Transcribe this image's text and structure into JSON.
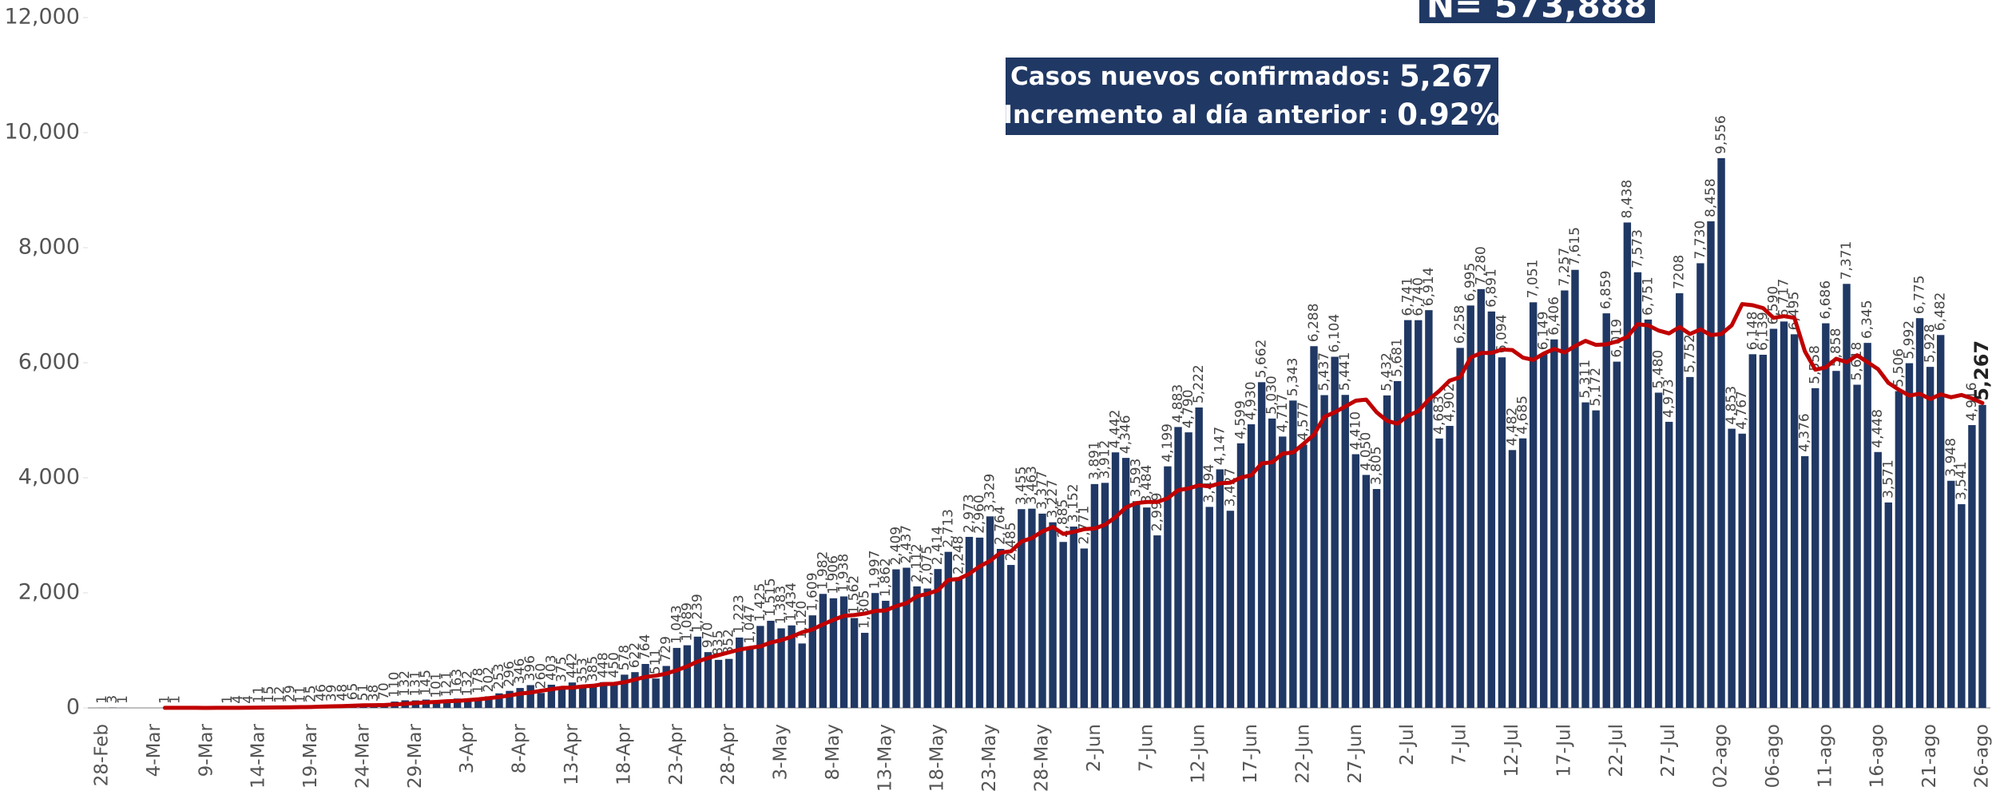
{
  "chart_data": {
    "type": "bar",
    "annotations": {
      "total": "N= 573,888",
      "new_cases_label": "Casos nuevos confirmados:",
      "new_cases_value": "5,267",
      "increase_label": "Incremento al día anterior :",
      "increase_value": "0.92%"
    },
    "categories": [
      "28-Feb",
      null,
      null,
      null,
      null,
      "4-Mar",
      null,
      null,
      null,
      null,
      "9-Mar",
      null,
      null,
      null,
      null,
      "14-Mar",
      null,
      null,
      null,
      null,
      "19-Mar",
      null,
      null,
      null,
      null,
      "24-Mar",
      null,
      null,
      null,
      null,
      "29-Mar",
      null,
      null,
      null,
      null,
      "3-Apr",
      null,
      null,
      null,
      null,
      "8-Apr",
      null,
      null,
      null,
      null,
      "13-Apr",
      null,
      null,
      null,
      null,
      "18-Apr",
      null,
      null,
      null,
      null,
      "23-Apr",
      null,
      null,
      null,
      null,
      "28-Apr",
      null,
      null,
      null,
      null,
      "3-May",
      null,
      null,
      null,
      null,
      "8-May",
      null,
      null,
      null,
      null,
      "13-May",
      null,
      null,
      null,
      null,
      "18-May",
      null,
      null,
      null,
      null,
      "23-May",
      null,
      null,
      null,
      null,
      "28-May",
      null,
      null,
      null,
      null,
      "2-Jun",
      null,
      null,
      null,
      null,
      "7-Jun",
      null,
      null,
      null,
      null,
      "12-Jun",
      null,
      null,
      null,
      null,
      "17-Jun",
      null,
      null,
      null,
      null,
      "22-Jun",
      null,
      null,
      null,
      null,
      "27-Jun",
      null,
      null,
      null,
      null,
      "2-Jul",
      null,
      null,
      null,
      null,
      "7-Jul",
      null,
      null,
      null,
      null,
      "12-Jul",
      null,
      null,
      null,
      null,
      "17-Jul",
      null,
      null,
      null,
      null,
      "22-Jul",
      null,
      null,
      null,
      null,
      "27-Jul",
      null,
      null,
      null,
      null,
      "02-ago",
      null,
      null,
      null,
      null,
      "06-ago",
      null,
      null,
      null,
      null,
      "11-ago",
      null,
      null,
      null,
      null,
      "16-ago",
      null,
      null,
      null,
      null,
      "21-ago",
      null,
      null,
      null,
      null,
      "26-ago"
    ],
    "series": [
      {
        "type": "bar",
        "color": "#203864",
        "values": [
          1,
          3,
          1,
          0,
          0,
          0,
          1,
          1,
          0,
          0,
          0,
          0,
          1,
          4,
          4,
          11,
          15,
          12,
          29,
          11,
          25,
          46,
          39,
          48,
          65,
          51,
          38,
          70,
          110,
          132,
          131,
          145,
          101,
          121,
          163,
          132,
          178,
          202,
          253,
          296,
          346,
          396,
          260,
          403,
          375,
          442,
          353,
          385,
          448,
          450,
          578,
          622,
          764,
          511,
          729,
          1043,
          1089,
          1239,
          970,
          835,
          852,
          1223,
          1047,
          1425,
          1515,
          1383,
          1434,
          1120,
          1609,
          1982,
          1906,
          1938,
          1562,
          1305,
          1997,
          1862,
          2409,
          2437,
          2112,
          2075,
          2414,
          2713,
          2248,
          2973,
          2960,
          3329,
          2764,
          2485,
          3455,
          3463,
          3377,
          3227,
          2885,
          3152,
          2771,
          3891,
          3912,
          4442,
          4346,
          3593,
          3484,
          2999,
          4199,
          4883,
          4790,
          5222,
          3494,
          4147,
          3427,
          4599,
          4930,
          5662,
          5030,
          4717,
          5343,
          4577,
          6288,
          5437,
          6104,
          5441,
          4410,
          4050,
          3805,
          5432,
          5681,
          6741,
          6740,
          6914,
          4683,
          4902,
          6258,
          6995,
          7280,
          6891,
          6094,
          4482,
          4685,
          7051,
          6149,
          6406,
          7257,
          7615,
          5311,
          5172,
          6859,
          6019,
          8438,
          7573,
          6751,
          5480,
          4973,
          7208,
          5752,
          7730,
          8458,
          9556,
          4853,
          4767,
          6148,
          6139,
          6590,
          6717,
          6495,
          4376,
          5558,
          6686,
          5858,
          7371,
          5618,
          6345,
          4448,
          3571,
          5506,
          5992,
          6775,
          5928,
          6482,
          3948,
          3541,
          4916,
          5267
        ],
        "value_labels": [
          "1",
          "3",
          "1",
          null,
          null,
          null,
          "1",
          "1",
          null,
          null,
          null,
          null,
          "1",
          "4",
          "4",
          "11",
          "15",
          "12",
          "29",
          "11",
          "25",
          "46",
          "39",
          "48",
          "65",
          "51",
          "38",
          "70",
          "110",
          "132",
          "131",
          "145",
          "101",
          "121",
          "163",
          "132",
          "178",
          "202",
          "253",
          "296",
          "346",
          "396",
          "260",
          "403",
          "375",
          "442",
          "353",
          "385",
          "448",
          "450",
          "578",
          "622",
          "764",
          "511",
          "729",
          "1,043",
          "1,089",
          "1,239",
          "970",
          "835",
          "852",
          "1,223",
          "1,047",
          "1,425",
          "1,515",
          "1,383",
          "1,434",
          "1,120",
          "1,609",
          "1,982",
          "1,906",
          "1,938",
          "1,562",
          "1,305",
          "1,997",
          "1,862",
          "2,409",
          "2,437",
          "2,112",
          "2,075",
          "2,414",
          "2,713",
          "2,248",
          "2,973",
          "2,960",
          "3,329",
          "2,764",
          "2,485",
          "3,455",
          "3,463",
          "3,377",
          "3,227",
          "2,885",
          "3,152",
          "2,771",
          "3,891",
          "3,912",
          "4,442",
          "4,346",
          "3,593",
          "3,484",
          "2,999",
          "4,199",
          "4,883",
          "4,790",
          "5,222",
          "3,494",
          "4,147",
          "3,427",
          "4,599",
          "4,930",
          "5,662",
          "5,030",
          "4,717",
          "5,343",
          "4,577",
          "6,288",
          "5,437",
          "6,104",
          "5,441",
          "4,410",
          "4,050",
          "3,805",
          "5,432",
          "5,681",
          "6,741",
          "6,740",
          "6,914",
          "4,683",
          "4,902",
          "6,258",
          "6,995",
          "7,280",
          "6,891",
          "6,094",
          "4,482",
          "4,685",
          "7,051",
          "6,149",
          "6,406",
          "7,257",
          "7,615",
          "5,311",
          "5,172",
          "6,859",
          "6,019",
          "8,438",
          "7,573",
          "6,751",
          "5,480",
          "4,973",
          "7208",
          "5,752",
          "7,730",
          "8,458",
          "9,556",
          "4,853",
          "4,767",
          "6,148",
          "6,139",
          "6,590",
          "6,717",
          "6,495",
          "4,376",
          "5,558",
          "6,686",
          "5,858",
          "7,371",
          "5,618",
          "6,345",
          "4,448",
          "3,571",
          "5,506",
          "5,992",
          "6,775",
          "5,928",
          "6,482",
          "3,948",
          "3,541",
          "4,916",
          "5,267"
        ]
      },
      {
        "type": "line",
        "color": "#c00000",
        "values": [
          null,
          null,
          null,
          null,
          null,
          null,
          1,
          1,
          1,
          1,
          0,
          1,
          1,
          2,
          3,
          5,
          7,
          9,
          11,
          13,
          16,
          22,
          27,
          31,
          38,
          45,
          47,
          50,
          60,
          72,
          85,
          96,
          104,
          116,
          121,
          136,
          149,
          169,
          190,
          216,
          248,
          267,
          298,
          325,
          350,
          353,
          373,
          385,
          415,
          419,
          447,
          493,
          539,
          560,
          597,
          654,
          723,
          807,
          869,
          918,
          966,
          1014,
          1044,
          1069,
          1137,
          1178,
          1238,
          1314,
          1365,
          1453,
          1531,
          1600,
          1615,
          1640,
          1685,
          1695,
          1769,
          1822,
          1941,
          1984,
          2043,
          2226,
          2242,
          2332,
          2460,
          2556,
          2700,
          2723,
          2892,
          2953,
          3067,
          3145,
          3025,
          3060,
          3107,
          3118,
          3185,
          3315,
          3485,
          3560,
          3580,
          3580,
          3645,
          3785,
          3815,
          3870,
          3850,
          3905,
          3915,
          4005,
          4045,
          4250,
          4270,
          4420,
          4440,
          4590,
          4750,
          5060,
          5140,
          5240,
          5340,
          5360,
          5140,
          4990,
          4940,
          5080,
          5160,
          5360,
          5510,
          5690,
          5750,
          6090,
          6170,
          6170,
          6230,
          6220,
          6090,
          6050,
          6160,
          6240,
          6180,
          6290,
          6380,
          6310,
          6320,
          6370,
          6450,
          6670,
          6650,
          6560,
          6510,
          6620,
          6500,
          6580,
          6480,
          6500,
          6650,
          7020,
          7000,
          6950,
          6780,
          6810,
          6780,
          6200,
          5880,
          5920,
          6070,
          6010,
          6130,
          6010,
          5890,
          5650,
          5530,
          5430,
          5460,
          5370,
          5450,
          5400,
          5440,
          5380,
          5300
        ]
      }
    ],
    "ylim": [
      0,
      12000
    ],
    "yticks": [
      0,
      {
        "value": 2000,
        "label": "2,000"
      },
      {
        "value": 4000,
        "label": "4,000"
      },
      {
        "value": 6000,
        "label": "6,000"
      },
      {
        "value": 8000,
        "label": "8,000"
      },
      {
        "value": 10000,
        "label": "10,000"
      },
      {
        "value": 12000,
        "label": "12,000"
      }
    ],
    "grid": false
  }
}
